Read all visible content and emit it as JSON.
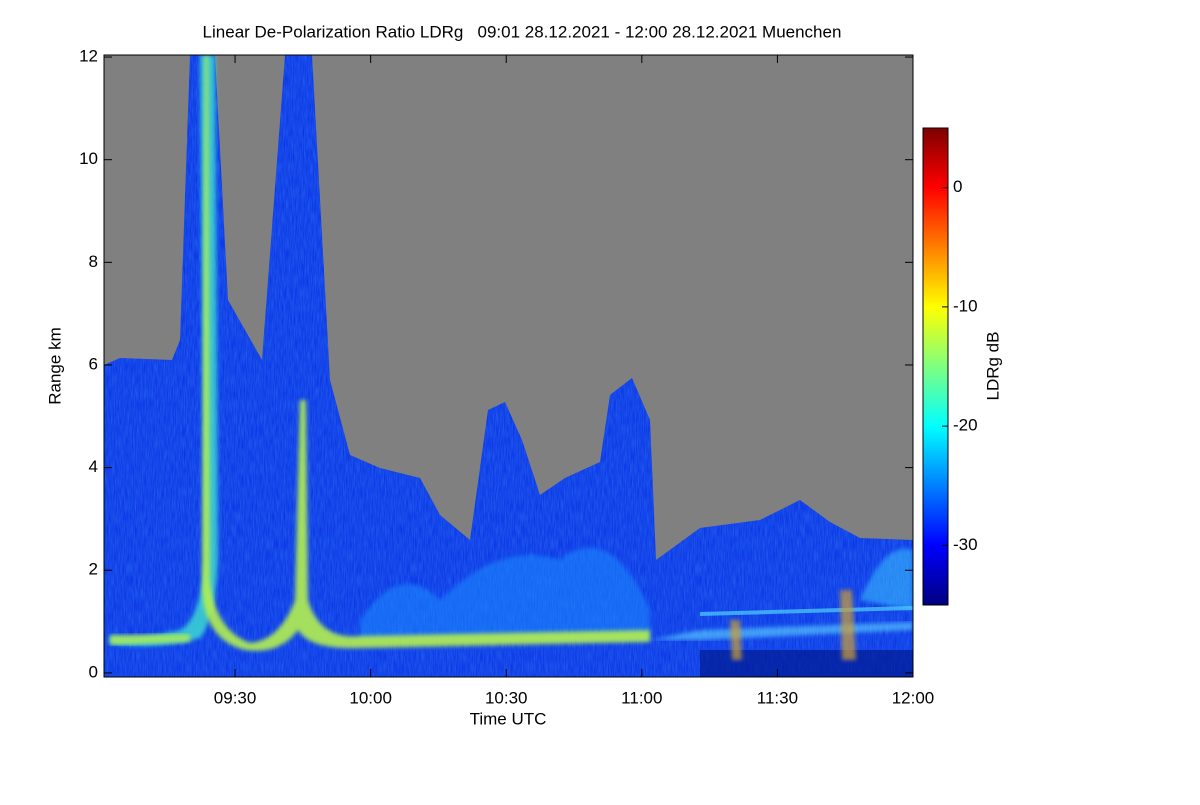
{
  "chart_data": {
    "type": "heatmap",
    "title": "Linear De-Polarization Ratio LDRg   09:01 28.12.2021 - 12:00 28.12.2021 Muenchen",
    "x_label": "Time UTC",
    "y_label": "Range km",
    "xlim": [
      "09:01",
      "12:00"
    ],
    "xticks": [
      "09:30",
      "10:00",
      "10:30",
      "11:00",
      "11:30",
      "12:00"
    ],
    "ylim": [
      -0.08,
      12.04
    ],
    "yticks": [
      0,
      2,
      4,
      6,
      8,
      10,
      12
    ],
    "colormap": "jet",
    "colorbar": {
      "label": "LDRg dB",
      "zlim": [
        -35,
        5
      ],
      "ticks": [
        0,
        -10,
        -20,
        -30
      ]
    }
  }
}
